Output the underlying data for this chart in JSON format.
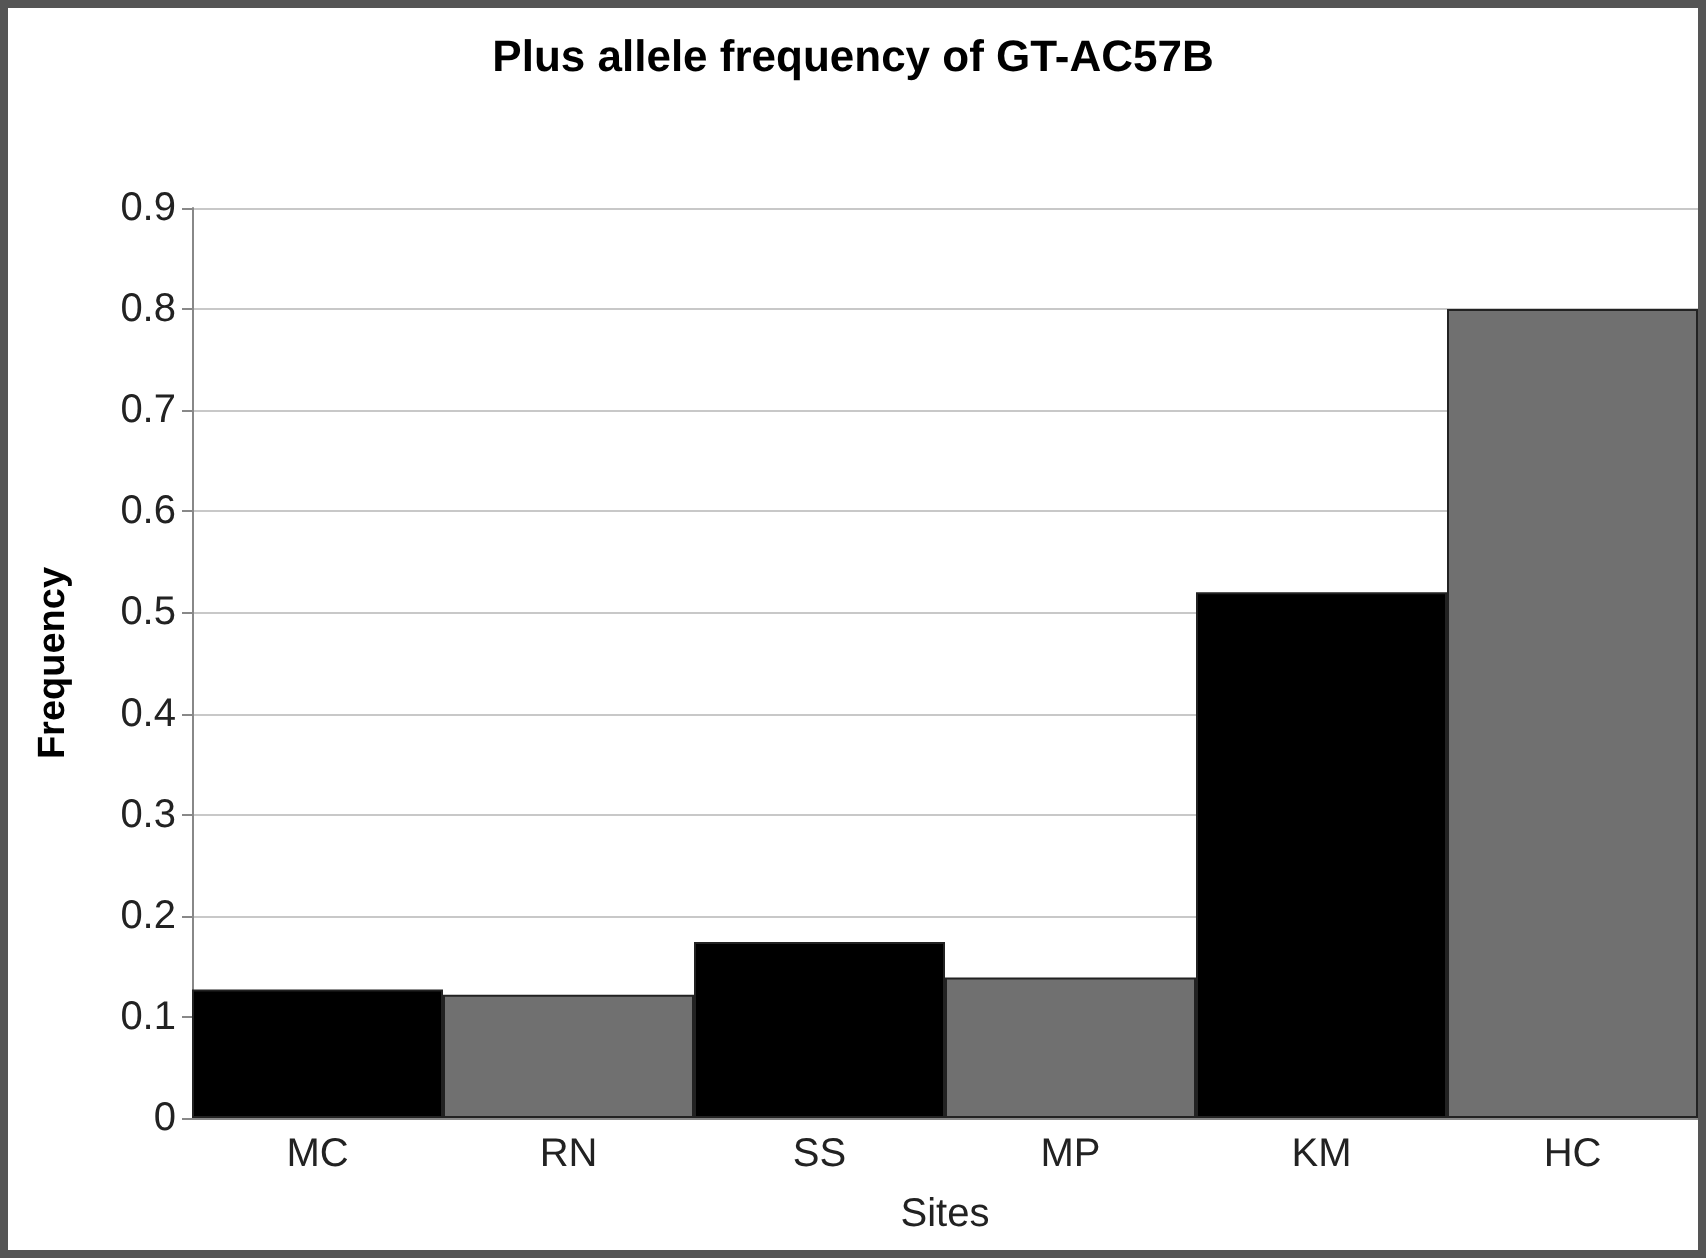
{
  "chart_data": {
    "type": "bar",
    "title": "Plus allele frequency of GT-AC57B",
    "xlabel": "Sites",
    "ylabel": "Frequency",
    "categories": [
      "MC",
      "RN",
      "SS",
      "MP",
      "KM",
      "HC"
    ],
    "values": [
      0.127,
      0.122,
      0.174,
      0.139,
      0.52,
      0.8
    ],
    "colors": [
      "#000000",
      "#707070",
      "#000000",
      "#707070",
      "#000000",
      "#707070"
    ],
    "ylim": [
      0,
      0.9
    ],
    "yticks": [
      0,
      0.1,
      0.2,
      0.3,
      0.4,
      0.5,
      0.6,
      0.7,
      0.8,
      0.9
    ],
    "grid": "y"
  }
}
